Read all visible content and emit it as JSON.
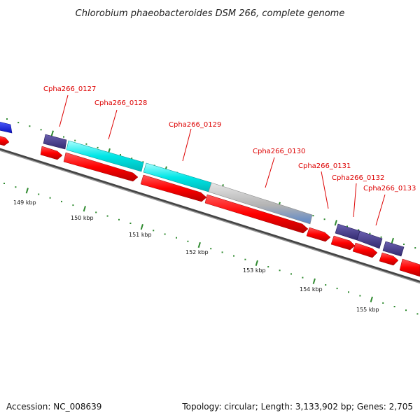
{
  "title": "Chlorobium phaeobacteroides DSM 266, complete genome",
  "footer": {
    "accession": "Accession: NC_008639",
    "summary": "Topology: circular; Length: 3,133,902 bp; Genes: 2,705"
  },
  "colors": {
    "strand_plus": "#ff0000",
    "cds_cyan": "#00eaea",
    "cds_navy": "#4a4088",
    "cds_gray": "#b5b5b5",
    "cds_blue": "#1a20ee",
    "label": "#dd0000",
    "tick": "#2f8a2f",
    "backbone": "#7a7a7a"
  },
  "kbp_ticks": [
    "149 kbp",
    "150 kbp",
    "151 kbp",
    "152 kbp",
    "153 kbp",
    "154 kbp",
    "155 kbp"
  ],
  "gene_labels": [
    "Cpha266_0127",
    "Cpha266_0128",
    "Cpha266_0129",
    "Cpha266_0130",
    "Cpha266_0131",
    "Cpha266_0132",
    "Cpha266_0133"
  ]
}
